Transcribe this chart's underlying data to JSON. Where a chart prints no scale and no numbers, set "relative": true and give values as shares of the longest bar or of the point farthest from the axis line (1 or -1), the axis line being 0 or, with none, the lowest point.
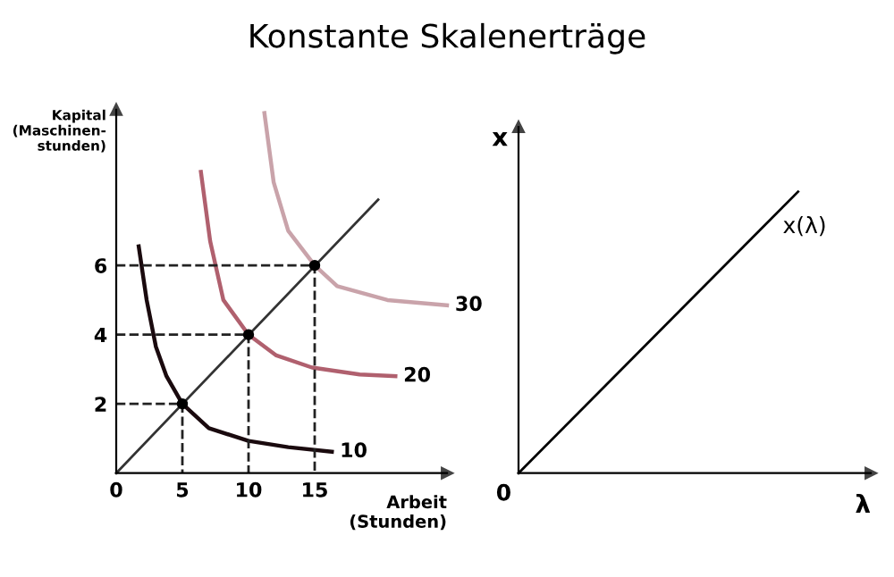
{
  "chart_data": [
    {
      "type": "line",
      "title": "Konstante Skalenerträge",
      "xlabel": "Arbeit\n(Stunden)",
      "ylabel": "Kapital\n(Maschinen-\nstunden)",
      "xlim": [
        0,
        25
      ],
      "ylim": [
        0,
        10.5
      ],
      "xticks": [
        0,
        5,
        10,
        15
      ],
      "yticks": [
        2,
        4,
        6
      ],
      "grid": false,
      "legend": false,
      "marker": "none",
      "series": [
        {
          "name": "10",
          "color": "#1a0a0e",
          "x": [
            1.7,
            2.3,
            3.0,
            3.8,
            5,
            7,
            10,
            13,
            16.3
          ],
          "values": [
            6.55,
            5.0,
            3.65,
            2.8,
            2,
            1.3,
            0.93,
            0.75,
            0.62
          ]
        },
        {
          "name": "20",
          "color": "#b0606e",
          "x": [
            6.4,
            7.1,
            8.1,
            10,
            12.1,
            14.8,
            18.4,
            21.1
          ],
          "values": [
            8.7,
            6.7,
            5.0,
            4,
            3.4,
            3.05,
            2.85,
            2.8
          ]
        },
        {
          "name": "30",
          "color": "#c9a3aa",
          "x": [
            11.2,
            11.9,
            13.0,
            15,
            16.7,
            20.5,
            25
          ],
          "values": [
            10.4,
            8.4,
            7.0,
            6,
            5.4,
            5.0,
            4.85
          ]
        },
        {
          "color": "#333333",
          "x": [
            0,
            19.8
          ],
          "values": [
            0,
            7.9
          ]
        },
        {
          "color": "#222222",
          "line_style": "dashed",
          "x": [
            0,
            5,
            5
          ],
          "values": [
            2,
            2,
            0
          ]
        },
        {
          "color": "#222222",
          "line_style": "dashed",
          "x": [
            0,
            10,
            10
          ],
          "values": [
            4,
            4,
            0
          ]
        },
        {
          "color": "#222222",
          "line_style": "dashed",
          "x": [
            0,
            15,
            15
          ],
          "values": [
            6,
            6,
            0
          ]
        },
        {
          "type": "scatter",
          "color": "#000000",
          "marker": "circle",
          "x": [
            5,
            10,
            15
          ],
          "values": [
            2,
            4,
            6
          ]
        }
      ]
    },
    {
      "type": "line",
      "relative": true,
      "xlabel": "λ",
      "ylabel": "x",
      "categories": [
        null,
        null
      ],
      "grid": false,
      "legend": false,
      "annotations": [
        "x(λ)",
        "0"
      ],
      "series": [
        {
          "color": "#000000",
          "values": [
            0,
            1
          ]
        }
      ]
    }
  ]
}
